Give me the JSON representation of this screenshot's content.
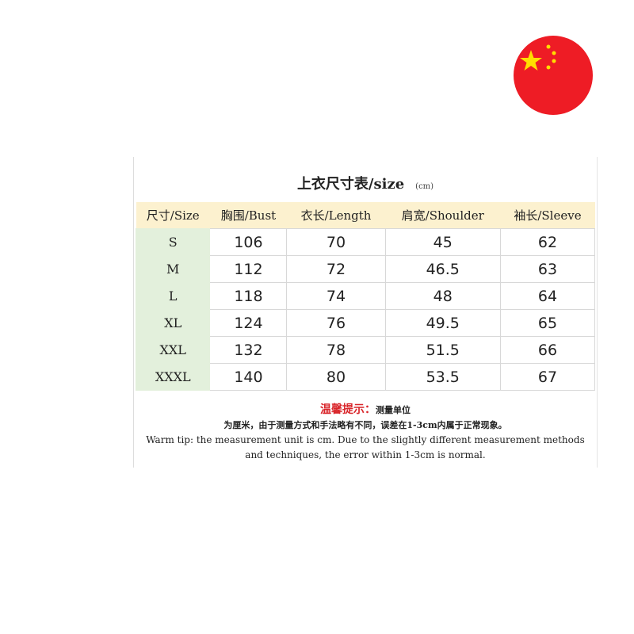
{
  "title": "上衣尺寸表/size",
  "unit": "(cm)",
  "headers": [
    "尺寸/Size",
    "胸围/Bust",
    "衣长/Length",
    "肩宽/Shoulder",
    "袖长/Sleeve"
  ],
  "rows": [
    [
      "S",
      "106",
      "70",
      "45",
      "62"
    ],
    [
      "M",
      "112",
      "72",
      "46.5",
      "63"
    ],
    [
      "L",
      "118",
      "74",
      "48",
      "64"
    ],
    [
      "XL",
      "124",
      "76",
      "49.5",
      "65"
    ],
    [
      "XXL",
      "132",
      "78",
      "51.5",
      "66"
    ],
    [
      "XXXL",
      "140",
      "80",
      "53.5",
      "67"
    ]
  ],
  "tip": {
    "label": "温馨提示：",
    "cn1": "测量单位",
    "cn2": "为厘米，由于测量方式和手法略有不同，误差在1-3cm内属于正常现象。",
    "en": "Warm tip: the measurement unit is cm. Due to the slightly different measurement methods and techniques, the error within 1-3cm is normal."
  },
  "flag": {
    "icon": "china-flag-icon",
    "red": "#ee1c25",
    "yellow": "#ffde00"
  }
}
